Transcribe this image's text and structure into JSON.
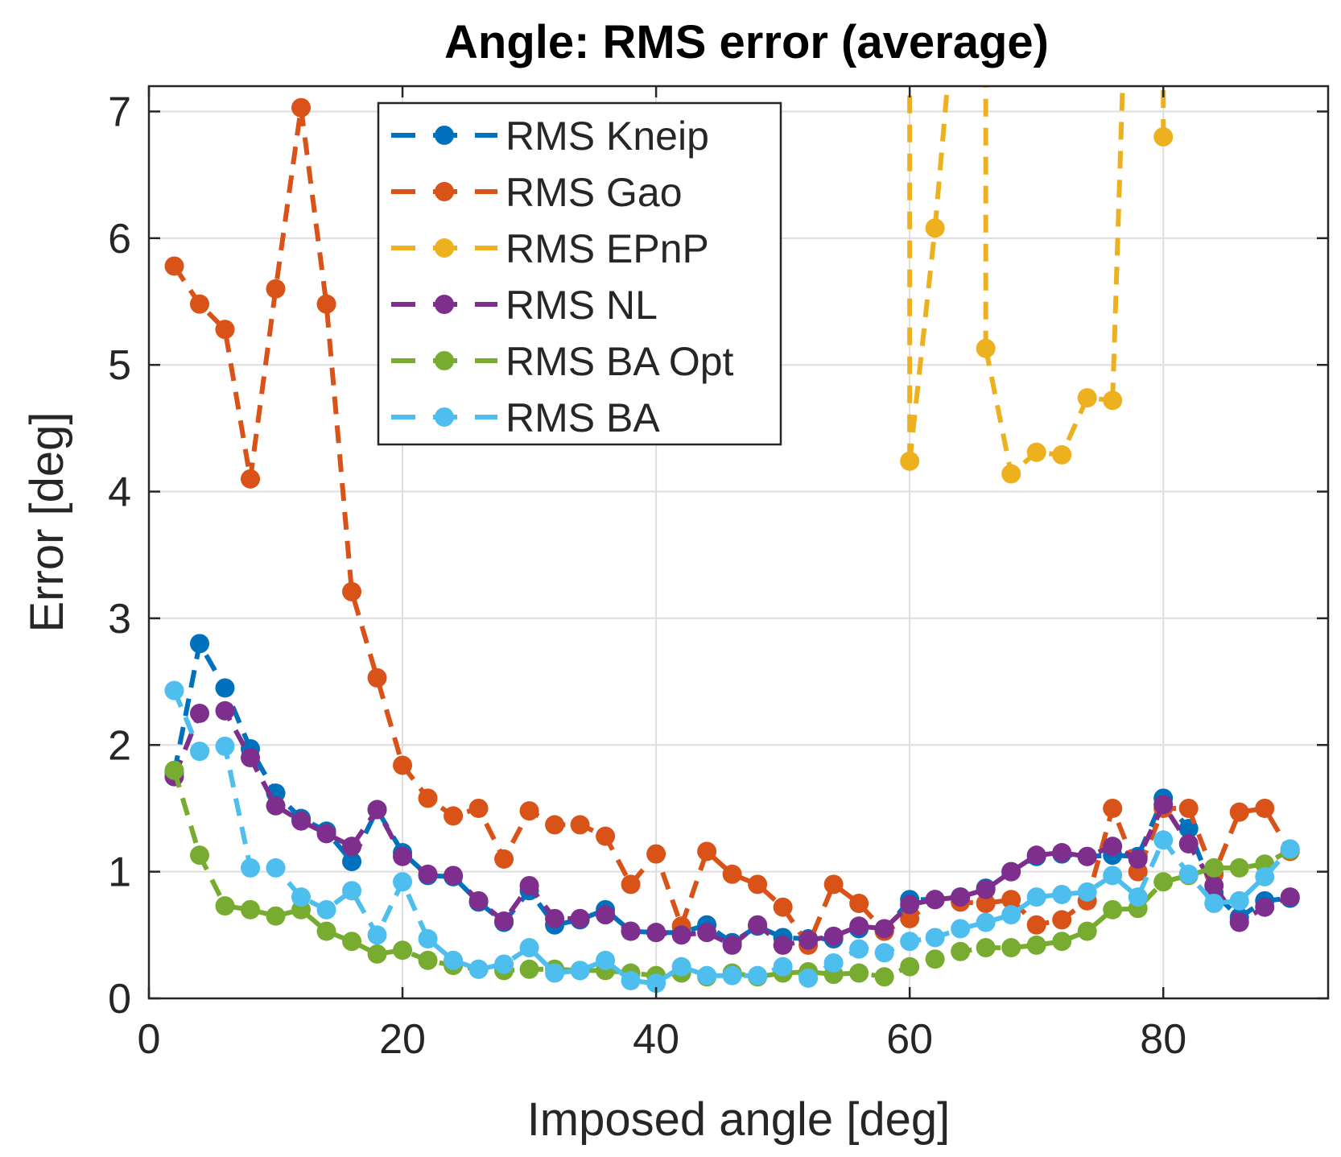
{
  "chart_data": {
    "type": "line",
    "title": "Angle:  RMS error (average)",
    "xlabel": "Imposed angle [deg]",
    "ylabel": "Error [deg]",
    "xlim": [
      0,
      93
    ],
    "ylim": [
      0,
      7.2
    ],
    "xticks": [
      0,
      20,
      40,
      60,
      80
    ],
    "yticks": [
      0,
      1,
      2,
      3,
      4,
      5,
      6,
      7
    ],
    "xtick_labels": [
      "0",
      "20",
      "40",
      "60",
      "80"
    ],
    "ytick_labels": [
      "0",
      "1",
      "2",
      "3",
      "4",
      "5",
      "6",
      "7"
    ],
    "grid": true,
    "legend_position": "top-left-center",
    "x": [
      2,
      4,
      6,
      8,
      10,
      12,
      14,
      16,
      18,
      20,
      22,
      24,
      26,
      28,
      30,
      32,
      34,
      36,
      38,
      40,
      42,
      44,
      46,
      48,
      50,
      52,
      54,
      56,
      58,
      60,
      62,
      64,
      66,
      68,
      70,
      72,
      74,
      76,
      78,
      80,
      82,
      84,
      86,
      88,
      90
    ],
    "series": [
      {
        "name": "RMS Kneip",
        "color": "#0072BD",
        "values": [
          1.78,
          2.8,
          2.45,
          1.97,
          1.62,
          1.42,
          1.32,
          1.08,
          1.49,
          1.15,
          0.97,
          0.96,
          0.76,
          0.6,
          0.85,
          0.58,
          0.62,
          0.7,
          0.53,
          0.52,
          0.52,
          0.58,
          0.44,
          0.57,
          0.48,
          0.47,
          0.47,
          0.55,
          0.53,
          0.78,
          0.78,
          0.8,
          0.87,
          1.0,
          1.12,
          1.14,
          1.12,
          1.13,
          1.12,
          1.58,
          1.34,
          0.83,
          0.64,
          0.77,
          0.79
        ]
      },
      {
        "name": "RMS Gao",
        "color": "#D95319",
        "values": [
          5.78,
          5.48,
          5.28,
          4.1,
          5.6,
          7.03,
          5.48,
          3.21,
          2.53,
          1.84,
          1.58,
          1.44,
          1.5,
          1.1,
          1.48,
          1.37,
          1.37,
          1.28,
          0.9,
          1.14,
          0.57,
          1.16,
          0.98,
          0.9,
          0.72,
          0.42,
          0.9,
          0.75,
          0.53,
          0.63,
          0.78,
          0.76,
          0.75,
          0.78,
          0.58,
          0.62,
          0.77,
          1.5,
          1.0,
          1.5,
          1.5,
          0.98,
          1.47,
          1.5,
          1.16
        ]
      },
      {
        "name": "RMS EPnP",
        "color": "#EDB120",
        "values": [
          null,
          null,
          null,
          null,
          null,
          null,
          null,
          null,
          null,
          null,
          null,
          null,
          null,
          null,
          null,
          null,
          null,
          null,
          null,
          null,
          null,
          null,
          null,
          null,
          null,
          null,
          null,
          null,
          null,
          4.24,
          6.08,
          null,
          5.13,
          4.14,
          4.31,
          4.29,
          4.74,
          4.72,
          null,
          6.8,
          null,
          null,
          null,
          null,
          null
        ]
      },
      {
        "name": "RMS NL",
        "color": "#7E2F8E",
        "values": [
          1.75,
          2.25,
          2.27,
          1.9,
          1.52,
          1.4,
          1.3,
          1.2,
          1.49,
          1.12,
          0.98,
          0.97,
          0.77,
          0.61,
          0.89,
          0.63,
          0.63,
          0.66,
          0.53,
          0.52,
          0.5,
          0.52,
          0.42,
          0.58,
          0.42,
          0.46,
          0.49,
          0.57,
          0.55,
          0.74,
          0.78,
          0.8,
          0.86,
          1.0,
          1.13,
          1.15,
          1.12,
          1.2,
          1.1,
          1.53,
          1.22,
          0.89,
          0.6,
          0.72,
          0.8
        ]
      },
      {
        "name": "RMS BA Opt",
        "color": "#77AC30",
        "values": [
          1.8,
          1.13,
          0.73,
          0.7,
          0.65,
          0.7,
          0.53,
          0.45,
          0.35,
          0.38,
          0.3,
          0.26,
          0.23,
          0.22,
          0.23,
          0.23,
          0.22,
          0.22,
          0.2,
          0.18,
          0.2,
          0.17,
          0.2,
          0.17,
          0.2,
          0.21,
          0.19,
          0.2,
          0.17,
          0.25,
          0.31,
          0.37,
          0.4,
          0.4,
          0.42,
          0.45,
          0.53,
          0.7,
          0.71,
          0.92,
          0.97,
          1.03,
          1.03,
          1.06,
          1.17
        ]
      },
      {
        "name": "RMS BA",
        "color": "#4DBEEE",
        "values": [
          2.43,
          1.95,
          1.99,
          1.03,
          1.03,
          0.8,
          0.7,
          0.85,
          0.5,
          0.92,
          0.47,
          0.3,
          0.23,
          0.27,
          0.4,
          0.2,
          0.22,
          0.3,
          0.14,
          0.12,
          0.25,
          0.18,
          0.18,
          0.18,
          0.25,
          0.16,
          0.28,
          0.39,
          0.36,
          0.45,
          0.48,
          0.55,
          0.6,
          0.66,
          0.8,
          0.82,
          0.84,
          0.97,
          0.8,
          1.25,
          0.98,
          0.75,
          0.77,
          0.96,
          1.18
        ]
      }
    ]
  }
}
